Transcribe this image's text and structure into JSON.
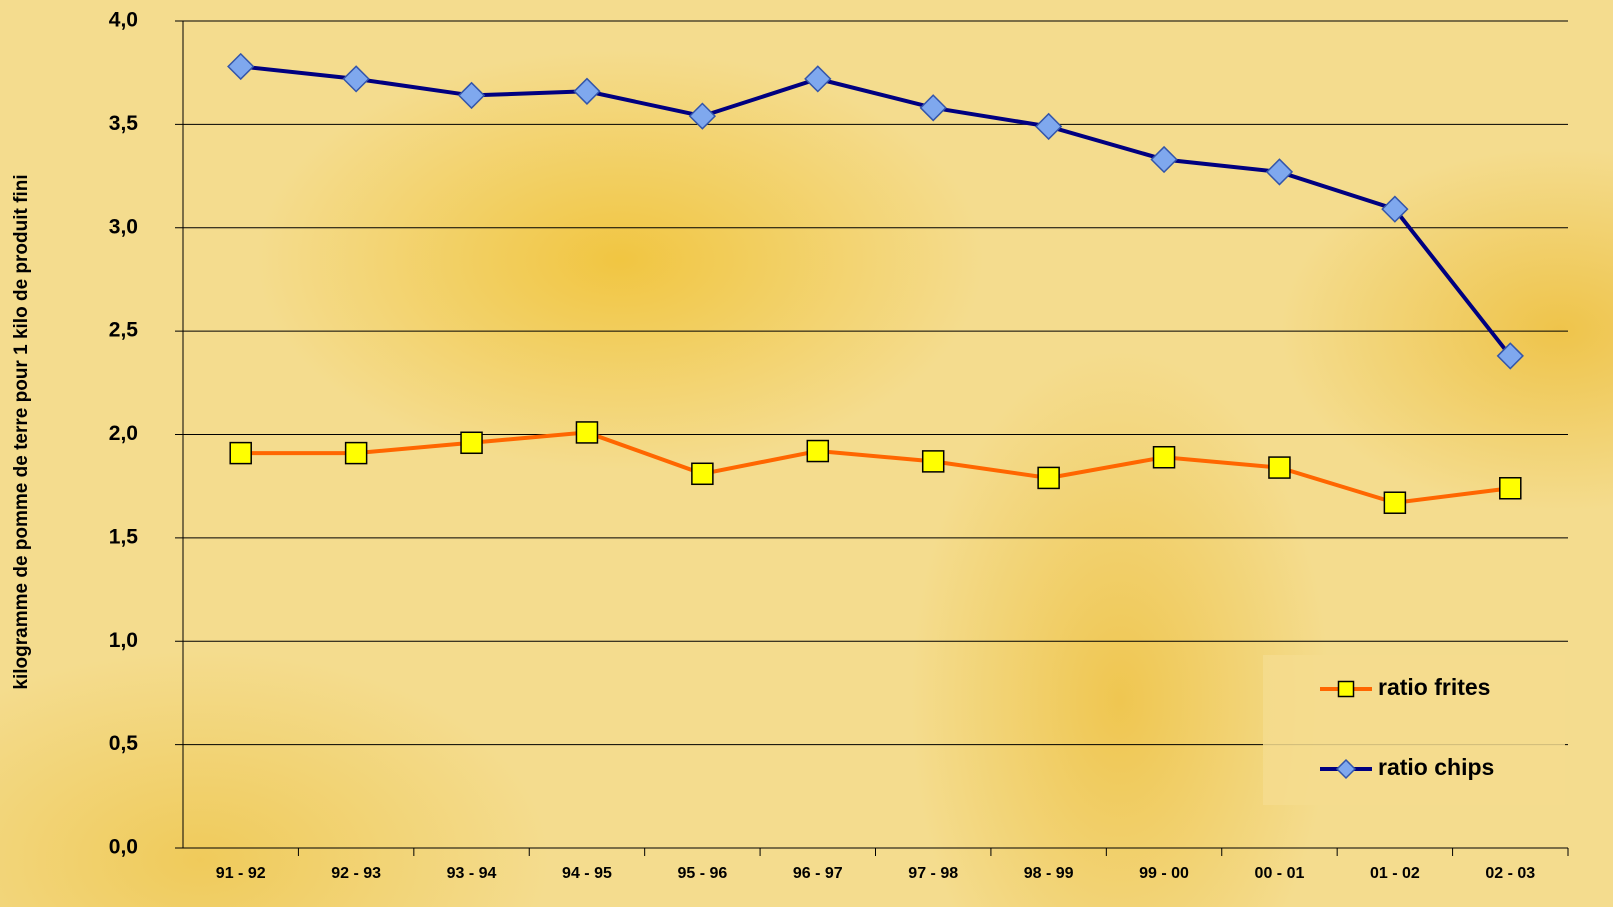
{
  "chart_data": {
    "type": "line",
    "y_label": "kilogramme de pomme de terre pour 1 kilo de produit fini",
    "categories": [
      "91 - 92",
      "92 - 93",
      "93 - 94",
      "94 - 95",
      "95 - 96",
      "96 - 97",
      "97 - 98",
      "98 - 99",
      "99 - 00",
      "00 - 01",
      "01 - 02",
      "02 - 03"
    ],
    "series": [
      {
        "name": "ratio frites",
        "color": "#ff6600",
        "marker": "square",
        "marker_color": "#ffff00",
        "values": [
          1.91,
          1.91,
          1.96,
          2.01,
          1.81,
          1.92,
          1.87,
          1.79,
          1.89,
          1.84,
          1.67,
          1.74
        ]
      },
      {
        "name": "ratio chips",
        "color": "#000080",
        "marker": "diamond",
        "marker_color": "#7fa8ee",
        "values": [
          3.78,
          3.72,
          3.64,
          3.66,
          3.54,
          3.72,
          3.58,
          3.49,
          3.33,
          3.27,
          3.09,
          2.38
        ]
      }
    ],
    "ylim": [
      0,
      4
    ],
    "yticks": [
      {
        "value": 0,
        "label": "0,0"
      },
      {
        "value": 0.5,
        "label": "0,5"
      },
      {
        "value": 1,
        "label": "1,0"
      },
      {
        "value": 1.5,
        "label": "1,5"
      },
      {
        "value": 2,
        "label": "2,0"
      },
      {
        "value": 2.5,
        "label": "2,5"
      },
      {
        "value": 3,
        "label": "3,0"
      },
      {
        "value": 3.5,
        "label": "3,5"
      },
      {
        "value": 4,
        "label": "4,0"
      }
    ],
    "grid": true,
    "legend": "lower right"
  }
}
